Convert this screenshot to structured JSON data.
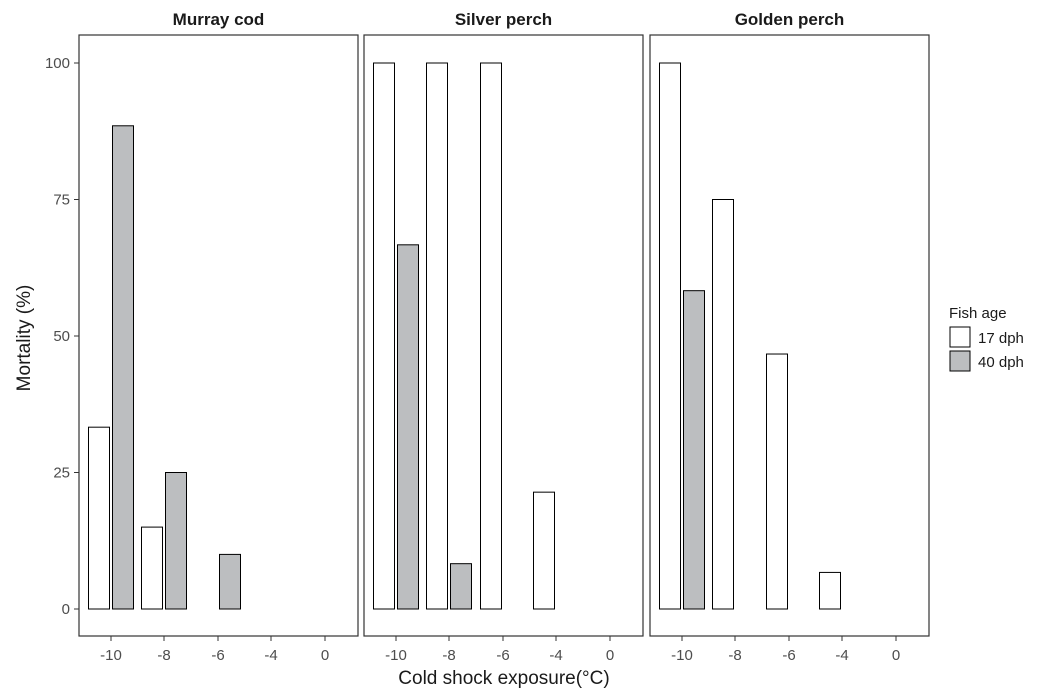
{
  "chart_data": {
    "type": "bar",
    "facets": [
      "Murray cod",
      "Silver perch",
      "Golden perch"
    ],
    "categories": [
      "-10",
      "-8",
      "-6",
      "-4",
      "0"
    ],
    "xlabel": "Cold shock exposure(°C)",
    "ylabel": "Mortality (%)",
    "ylim": [
      0,
      100
    ],
    "yticks": [
      "0",
      "25",
      "50",
      "75",
      "100"
    ],
    "grid": false,
    "legend": {
      "title": "Fish age",
      "placement": "right",
      "entries": [
        {
          "name": "17 dph",
          "color": "#ffffff"
        },
        {
          "name": "40 dph",
          "color": "#bcbec0"
        }
      ]
    },
    "series_by_facet": [
      {
        "facet": "Murray cod",
        "series": [
          {
            "name": "17 dph",
            "values": [
              33.3,
              15,
              0,
              0,
              0
            ]
          },
          {
            "name": "40 dph",
            "values": [
              88.5,
              25,
              10,
              0,
              0
            ]
          }
        ]
      },
      {
        "facet": "Silver perch",
        "series": [
          {
            "name": "17 dph",
            "values": [
              100,
              100,
              100,
              21.4,
              0
            ]
          },
          {
            "name": "40 dph",
            "values": [
              66.7,
              8.3,
              0,
              0,
              0
            ]
          }
        ]
      },
      {
        "facet": "Golden perch",
        "series": [
          {
            "name": "17 dph",
            "values": [
              100,
              75,
              46.7,
              6.7,
              0
            ]
          },
          {
            "name": "40 dph",
            "values": [
              58.3,
              0,
              0,
              0,
              0
            ]
          }
        ]
      }
    ]
  },
  "colors": {
    "bar_outline": "#000000",
    "panel_border": "#333333",
    "fill_17dph": "#ffffff",
    "fill_40dph": "#bcbec0"
  }
}
